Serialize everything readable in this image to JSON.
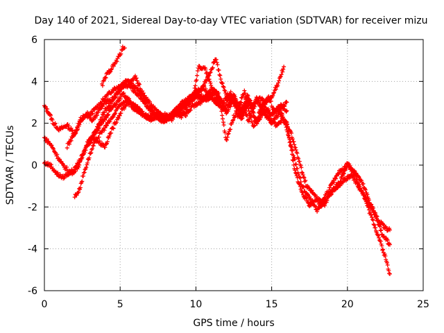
{
  "chart_data": {
    "type": "scatter",
    "title": "Day 140 of 2021, Sidereal Day-to-day VTEC variation (SDTVAR) for receiver mizu",
    "xlabel": "GPS time / hours",
    "ylabel": "SDTVAR / TECUs",
    "xlim": [
      0,
      25
    ],
    "ylim": [
      -6,
      6
    ],
    "xticks": [
      0,
      5,
      10,
      15,
      20,
      25
    ],
    "yticks": [
      -6,
      -4,
      -2,
      0,
      2,
      4,
      6
    ],
    "grid": true,
    "marker": "plus",
    "color": "#ff0000",
    "series": [
      {
        "name": "trace-1",
        "x": [
          0,
          0.3,
          0.6,
          1,
          1.5,
          2,
          2.5,
          3,
          3.5,
          4,
          4.5,
          5,
          5.5,
          6,
          6.5,
          7,
          7.5,
          8,
          8.5,
          9,
          9.5,
          10,
          10.5,
          11,
          11.5,
          12,
          12.5,
          13,
          13.5,
          14,
          14.5,
          15,
          15.5,
          16,
          16.5,
          17,
          17.5,
          18,
          18.5,
          19,
          19.5,
          20,
          20.5,
          21,
          21.5,
          22,
          22.5,
          22.8
        ],
        "y": [
          2.8,
          2.5,
          2.0,
          1.7,
          1.9,
          1.5,
          2.2,
          2.4,
          2.8,
          3.2,
          3.6,
          3.8,
          4.1,
          3.7,
          3.3,
          2.6,
          2.3,
          2.2,
          2.4,
          2.9,
          3.2,
          3.5,
          3.7,
          3.3,
          3.0,
          2.6,
          3.4,
          2.2,
          3.1,
          2.0,
          2.6,
          2.4,
          2.8,
          1.7,
          0.3,
          -1.0,
          -1.6,
          -2.2,
          -1.5,
          -0.9,
          -0.3,
          0.0,
          -0.3,
          -0.9,
          -1.8,
          -2.6,
          -3.0,
          -3.1
        ]
      },
      {
        "name": "trace-2",
        "x": [
          0,
          0.4,
          0.8,
          1.2,
          1.8,
          2.3,
          2.8,
          3.3,
          3.8,
          4.3,
          4.8,
          5.2,
          5.6,
          6,
          6.5,
          7,
          7.5,
          8,
          8.5,
          9,
          9.5,
          10,
          10.5,
          11,
          11.5,
          12,
          12.5,
          13,
          13.5,
          14,
          14.5,
          15,
          15.5,
          16,
          16.5,
          17,
          17.5,
          18,
          18.5,
          19,
          19.5,
          20,
          20.5,
          21,
          21.5,
          22,
          22.5,
          22.8
        ],
        "y": [
          1.3,
          1.0,
          0.5,
          0.0,
          -0.4,
          0.0,
          1.0,
          1.5,
          2.0,
          2.6,
          3.0,
          3.4,
          3.0,
          2.8,
          2.4,
          2.2,
          2.3,
          2.2,
          2.5,
          2.3,
          2.9,
          3.3,
          3.1,
          3.6,
          3.4,
          1.2,
          2.3,
          2.9,
          2.1,
          3.2,
          2.4,
          2.0,
          2.5,
          2.0,
          -0.2,
          -1.3,
          -1.9,
          -1.6,
          -1.9,
          -1.2,
          -0.8,
          0.1,
          -0.5,
          -1.3,
          -2.3,
          -3.3,
          -4.4,
          -5.2
        ]
      },
      {
        "name": "trace-3",
        "x": [
          0,
          0.4,
          0.8,
          1.2,
          1.6,
          2,
          2.4,
          2.8,
          3.2,
          3.6,
          4,
          4.4,
          4.8,
          5.1,
          5.5,
          5.9,
          6.3,
          6.8,
          7.3,
          7.8,
          8.3,
          8.8,
          9.3,
          9.8,
          10.3,
          10.8,
          11.3,
          11.8,
          12.3,
          12.8,
          13.3,
          13.8,
          14.3,
          14.8,
          15.3,
          15.8,
          16.3,
          16.8,
          17.3,
          17.8,
          18.3,
          18.8,
          19.3,
          19.8,
          20.3,
          20.8,
          21.3,
          21.8,
          22.3,
          22.8
        ],
        "y": [
          0.1,
          0.0,
          -0.4,
          -0.6,
          -0.4,
          -0.2,
          0.3,
          0.9,
          1.3,
          1.1,
          0.9,
          1.6,
          2.2,
          2.6,
          3.0,
          2.7,
          2.5,
          2.3,
          2.4,
          2.1,
          2.3,
          2.6,
          2.4,
          2.8,
          3.0,
          3.4,
          3.0,
          2.6,
          3.5,
          2.3,
          3.1,
          1.8,
          2.7,
          2.3,
          1.9,
          2.2,
          1.5,
          0.2,
          -1.0,
          -1.4,
          -2.0,
          -1.4,
          -1.1,
          -0.7,
          -0.5,
          -1.1,
          -1.7,
          -2.3,
          -3.3,
          -3.8
        ]
      },
      {
        "name": "trace-4",
        "x": [
          2,
          2.3,
          2.6,
          3,
          3.4,
          3.8,
          4.2,
          4.6,
          5,
          5.2,
          5.5,
          5.8,
          6.2,
          6.6,
          7,
          7.4,
          7.8,
          8.2,
          8.6,
          9,
          9.4,
          9.8,
          10.2,
          10.6,
          11,
          11.4,
          11.8,
          12.2,
          12.6,
          13,
          13.4,
          13.8,
          14.2,
          14.6,
          15,
          15.4,
          15.8
        ],
        "y": [
          -1.5,
          -1.2,
          -0.4,
          0.5,
          1.2,
          1.6,
          2.0,
          2.4,
          2.9,
          3.0,
          3.2,
          2.9,
          2.7,
          2.4,
          2.2,
          2.3,
          2.1,
          2.2,
          2.6,
          2.9,
          3.1,
          3.3,
          4.7,
          4.6,
          3.8,
          3.2,
          3.0,
          3.3,
          3.1,
          2.6,
          3.3,
          2.8,
          3.2,
          3.0,
          3.2,
          3.9,
          4.7
        ]
      },
      {
        "name": "trace-5",
        "x": [
          2.8,
          3.2,
          3.6,
          4,
          4.4,
          4.8,
          5.2,
          5.6,
          6,
          6.5,
          7,
          7.5,
          8,
          8.5,
          9,
          9.5,
          10,
          10.5,
          11,
          11.3,
          11.6,
          12,
          12.5,
          13,
          13.5,
          14,
          14.5,
          15,
          15.5,
          16
        ],
        "y": [
          1.0,
          1.4,
          2.0,
          2.6,
          3.0,
          3.4,
          3.8,
          3.9,
          4.2,
          3.4,
          2.9,
          2.5,
          2.3,
          2.5,
          2.7,
          3.0,
          3.3,
          3.8,
          4.5,
          5.1,
          4.2,
          3.4,
          3.0,
          2.3,
          3.2,
          2.0,
          2.9,
          2.4,
          2.7,
          3.0
        ]
      },
      {
        "name": "trace-6",
        "x": [
          1.5,
          2,
          2.4,
          2.8,
          3.2,
          3.6,
          4,
          4.4,
          4.8,
          5.2,
          5.6,
          6,
          6.4,
          6.8,
          7.2,
          7.6,
          8,
          8.4,
          8.8,
          9.2,
          9.6,
          10,
          10.4,
          10.8,
          11.2,
          11.6,
          12,
          12.4,
          12.8,
          13.2,
          13.6,
          14,
          14.4,
          14.8,
          15.2,
          15.6,
          16
        ],
        "y": [
          0.9,
          1.5,
          2.2,
          2.5,
          2.1,
          2.6,
          3.0,
          3.1,
          3.4,
          3.8,
          3.8,
          3.5,
          3.2,
          2.8,
          2.5,
          2.3,
          2.4,
          2.2,
          2.6,
          2.8,
          3.1,
          3.5,
          3.3,
          3.1,
          3.6,
          3.2,
          2.5,
          3.0,
          2.8,
          3.5,
          2.7,
          3.1,
          2.8,
          3.3,
          2.5,
          2.9,
          2.6
        ]
      },
      {
        "name": "trace-7",
        "x": [
          3.8,
          4.1,
          4.4,
          4.7,
          5.0,
          5.1,
          5.2,
          5.3
        ],
        "y": [
          3.8,
          4.3,
          4.6,
          4.9,
          5.3,
          5.5,
          5.6,
          5.6
        ]
      }
    ]
  }
}
